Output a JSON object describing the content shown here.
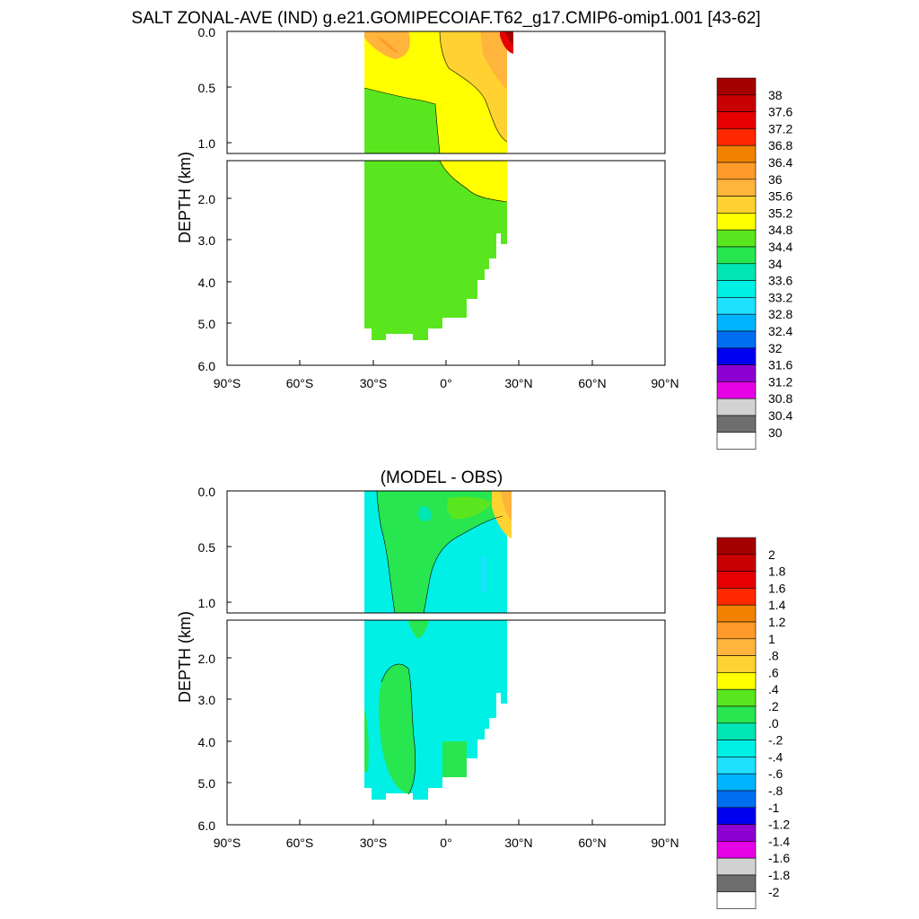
{
  "chart_data": [
    {
      "type": "heatmap",
      "title": "SALT ZONAL-AVE (IND) g.e21.GOMIPECOIAF.T62_g17.CMIP6-omip1.001 [43-62]",
      "ylabel": "DEPTH (km)",
      "xlabel": "",
      "xlim": [
        -90,
        90
      ],
      "xticks": [
        "90°S",
        "60°S",
        "30°S",
        "0°",
        "30°N",
        "60°N",
        "90°N"
      ],
      "ylim_top": [
        0,
        1.1
      ],
      "ylim_bottom": [
        1.1,
        6.0
      ],
      "yticks_top": [
        "0.0",
        "0.5",
        "1.0"
      ],
      "yticks_bottom": [
        "2.0",
        "3.0",
        "4.0",
        "5.0",
        "6.0"
      ],
      "grid": false,
      "legend_position": "right",
      "colorbar": {
        "labels": [
          "38",
          "37.6",
          "37.2",
          "36.8",
          "36.4",
          "36",
          "35.6",
          "35.2",
          "34.8",
          "34.4",
          "34",
          "33.6",
          "33.2",
          "32.8",
          "32.4",
          "32",
          "31.6",
          "31.2",
          "30.8",
          "30.4",
          "30"
        ],
        "colors": [
          "#a50000",
          "#c80000",
          "#e60000",
          "#ff2800",
          "#f08200",
          "#ff9b28",
          "#ffb43c",
          "#ffd232",
          "#ffff00",
          "#5ae61e",
          "#28e650",
          "#00e6b4",
          "#00f0e6",
          "#1ee1ff",
          "#00b4ff",
          "#006ef0",
          "#0000f0",
          "#8c00d2",
          "#e600e6",
          "#d2d2d2",
          "#6e6e6e",
          "#ffffff"
        ]
      },
      "data_extent": {
        "lat_min": -34,
        "lat_max": 25,
        "max_depth_km": 5.4
      }
    },
    {
      "type": "heatmap",
      "title": "(MODEL - OBS)",
      "ylabel": "DEPTH (km)",
      "xlabel": "",
      "xlim": [
        -90,
        90
      ],
      "xticks": [
        "90°S",
        "60°S",
        "30°S",
        "0°",
        "30°N",
        "60°N",
        "90°N"
      ],
      "ylim_top": [
        0,
        1.1
      ],
      "ylim_bottom": [
        1.1,
        6.0
      ],
      "yticks_top": [
        "0.0",
        "0.5",
        "1.0"
      ],
      "yticks_bottom": [
        "2.0",
        "3.0",
        "4.0",
        "5.0",
        "6.0"
      ],
      "grid": false,
      "legend_position": "right",
      "colorbar": {
        "labels": [
          "2",
          "1.8",
          "1.6",
          "1.4",
          "1.2",
          "1",
          ".8",
          ".6",
          ".4",
          ".2",
          ".0",
          "-.2",
          "-.4",
          "-.6",
          "-.8",
          "-1",
          "-1.2",
          "-1.4",
          "-1.6",
          "-1.8",
          "-2"
        ],
        "colors": [
          "#a50000",
          "#c80000",
          "#e60000",
          "#ff2800",
          "#f08200",
          "#ff9b28",
          "#ffb43c",
          "#ffd232",
          "#ffff00",
          "#5ae61e",
          "#28e650",
          "#00e6b4",
          "#00f0e6",
          "#1ee1ff",
          "#00b4ff",
          "#006ef0",
          "#0000f0",
          "#8c00d2",
          "#e600e6",
          "#d2d2d2",
          "#6e6e6e",
          "#ffffff"
        ]
      },
      "data_extent": {
        "lat_min": -34,
        "lat_max": 25,
        "max_depth_km": 5.4
      }
    }
  ]
}
